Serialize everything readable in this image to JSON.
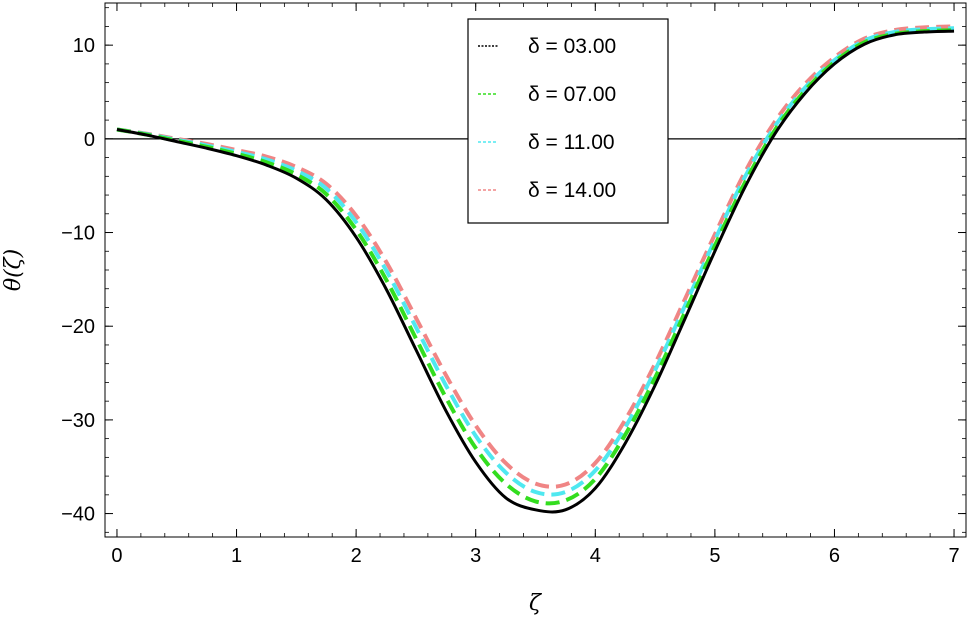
{
  "chart_data": {
    "type": "line",
    "xlabel": "ζ",
    "ylabel": "θ(ζ)",
    "xlim": [
      -0.1,
      7.1
    ],
    "ylim": [
      -42.5,
      14.5
    ],
    "x_ticks": [
      0,
      1,
      2,
      3,
      4,
      5,
      6,
      7
    ],
    "y_ticks": [
      10,
      0,
      -10,
      -20,
      -30,
      -40
    ],
    "y_tick_labels": [
      "10",
      "0",
      "−10",
      "−20",
      "−30",
      "−40"
    ],
    "zero_line": true,
    "grid": false,
    "legend_position": "top-right",
    "legend_symbol": "δ",
    "series": [
      {
        "name": "δ = 03.00",
        "color": "#000000",
        "style": "solid",
        "x": [
          0,
          0.25,
          0.5,
          0.75,
          1,
          1.25,
          1.5,
          1.75,
          2,
          2.25,
          2.5,
          2.75,
          3,
          3.25,
          3.5,
          3.75,
          4,
          4.25,
          4.5,
          4.75,
          5,
          5.25,
          5.5,
          5.75,
          6,
          6.25,
          6.5,
          6.75,
          7
        ],
        "y": [
          1.0,
          0.4,
          -0.3,
          -1.0,
          -1.8,
          -2.8,
          -4.2,
          -6.5,
          -10.5,
          -16.0,
          -22.5,
          -29.0,
          -34.5,
          -38.3,
          -39.6,
          -39.6,
          -37.3,
          -32.5,
          -26.3,
          -19.2,
          -12.0,
          -5.2,
          0.5,
          4.8,
          8.0,
          10.1,
          11.1,
          11.4,
          11.5
        ]
      },
      {
        "name": "δ = 07.00",
        "color": "#33dd1f",
        "style": "dashed",
        "x": [
          0,
          0.25,
          0.5,
          0.75,
          1,
          1.25,
          1.5,
          1.75,
          2,
          2.25,
          2.5,
          2.75,
          3,
          3.25,
          3.5,
          3.75,
          4,
          4.25,
          4.5,
          4.75,
          5,
          5.25,
          5.5,
          5.75,
          6,
          6.25,
          6.5,
          6.75,
          7
        ],
        "y": [
          1.0,
          0.45,
          -0.2,
          -0.85,
          -1.6,
          -2.5,
          -3.8,
          -5.9,
          -9.7,
          -15.0,
          -21.3,
          -27.6,
          -33.0,
          -36.8,
          -38.7,
          -38.6,
          -36.3,
          -31.6,
          -25.5,
          -18.5,
          -11.4,
          -4.7,
          0.9,
          5.1,
          8.2,
          10.3,
          11.2,
          11.5,
          11.6
        ]
      },
      {
        "name": "δ = 11.00",
        "color": "#4fe8f0",
        "style": "dashed",
        "x": [
          0,
          0.25,
          0.5,
          0.75,
          1,
          1.25,
          1.5,
          1.75,
          2,
          2.25,
          2.5,
          2.75,
          3,
          3.25,
          3.5,
          3.75,
          4,
          4.25,
          4.5,
          4.75,
          5,
          5.25,
          5.5,
          5.75,
          6,
          6.25,
          6.5,
          6.75,
          7
        ],
        "y": [
          1.0,
          0.5,
          -0.1,
          -0.7,
          -1.4,
          -2.2,
          -3.4,
          -5.3,
          -8.9,
          -14.0,
          -20.1,
          -26.3,
          -31.7,
          -35.6,
          -37.7,
          -37.7,
          -35.4,
          -30.8,
          -24.7,
          -17.8,
          -10.8,
          -4.1,
          1.3,
          5.4,
          8.4,
          10.5,
          11.4,
          11.7,
          11.8
        ]
      },
      {
        "name": "δ = 14.00",
        "color": "#f08585",
        "style": "dashed",
        "x": [
          0,
          0.25,
          0.5,
          0.75,
          1,
          1.25,
          1.5,
          1.75,
          2,
          2.25,
          2.5,
          2.75,
          3,
          3.25,
          3.5,
          3.75,
          4,
          4.25,
          4.5,
          4.75,
          5,
          5.25,
          5.5,
          5.75,
          6,
          6.25,
          6.5,
          6.75,
          7
        ],
        "y": [
          1.0,
          0.55,
          0.0,
          -0.55,
          -1.2,
          -1.9,
          -3.0,
          -4.8,
          -8.2,
          -13.1,
          -19.1,
          -25.2,
          -30.6,
          -34.6,
          -36.8,
          -36.9,
          -34.6,
          -30.0,
          -24.0,
          -17.1,
          -10.2,
          -3.6,
          1.8,
          5.8,
          8.7,
          10.7,
          11.6,
          11.9,
          12.0
        ]
      }
    ]
  }
}
